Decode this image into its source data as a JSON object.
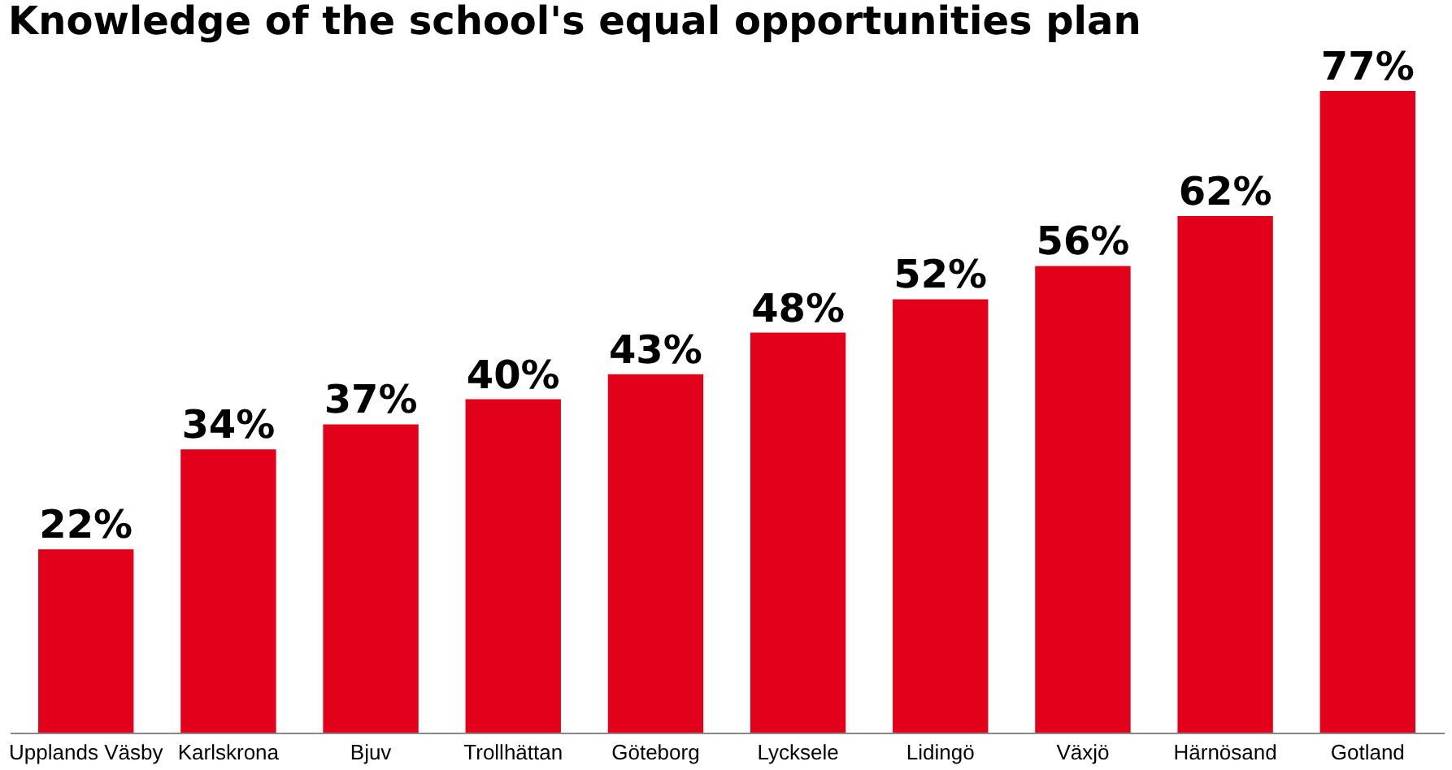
{
  "chart_data": {
    "type": "bar",
    "title": "Knowledge of the school's equal opportunities plan",
    "categories": [
      "Upplands Väsby",
      "Karlskrona",
      "Bjuv",
      "Trollhättan",
      "Göteborg",
      "Lycksele",
      "Lidingö",
      "Växjö",
      "Härnösand",
      "Gotland"
    ],
    "values": [
      22,
      34,
      37,
      40,
      43,
      48,
      52,
      56,
      62,
      77
    ],
    "value_labels": [
      "22%",
      "34%",
      "37%",
      "40%",
      "43%",
      "48%",
      "52%",
      "56%",
      "62%",
      "77%"
    ],
    "color": "#e2001a"
  }
}
